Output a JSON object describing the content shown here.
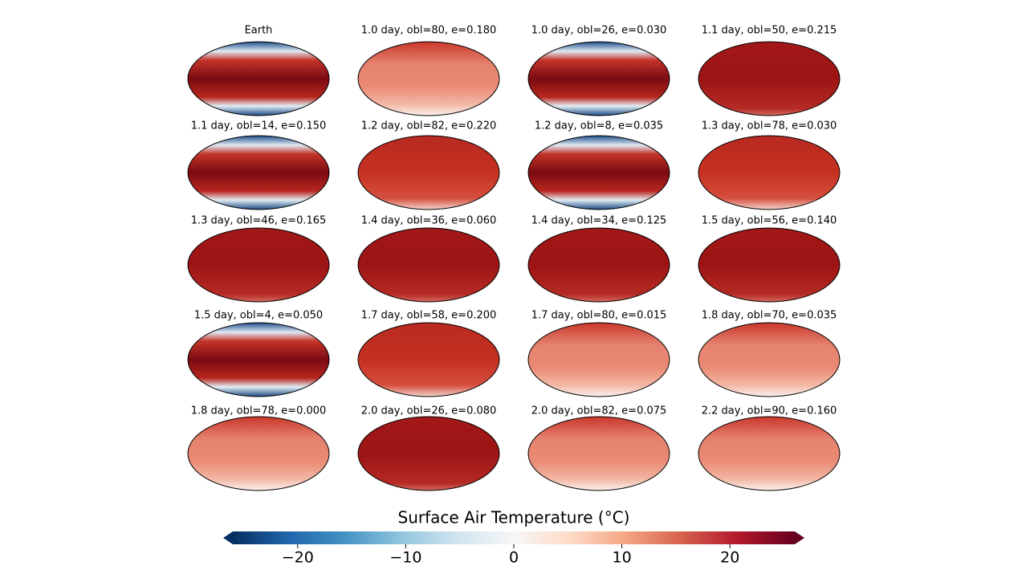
{
  "panels": [
    "Earth",
    "1.0 day, obl=80, e=0.180",
    "1.0 day, obl=26, e=0.030",
    "1.1 day, obl=50, e=0.215",
    "1.1 day, obl=14, e=0.150",
    "1.2 day, obl=82, e=0.220",
    "1.2 day, obl=8, e=0.035",
    "1.3 day, obl=78, e=0.030",
    "1.3 day, obl=46, e=0.165",
    "1.4 day, obl=36, e=0.060",
    "1.4 day, obl=34, e=0.125",
    "1.5 day, obl=56, e=0.140",
    "1.5 day, obl=4, e=0.050",
    "1.7 day, obl=58, e=0.200",
    "1.7 day, obl=80, e=0.015",
    "1.8 day, obl=70, e=0.035",
    "1.8 day, obl=78, e=0.000",
    "2.0 day, obl=26, e=0.080",
    "2.0 day, obl=82, e=0.075",
    "2.2 day, obl=90, e=0.160"
  ],
  "colorbar": {
    "label": "Surface Air Temperature (°C)",
    "lim": [
      -26,
      26
    ],
    "ticks": [
      {
        "value": -20,
        "label": "−20"
      },
      {
        "value": -10,
        "label": "−10"
      },
      0,
      10,
      20
    ]
  }
}
